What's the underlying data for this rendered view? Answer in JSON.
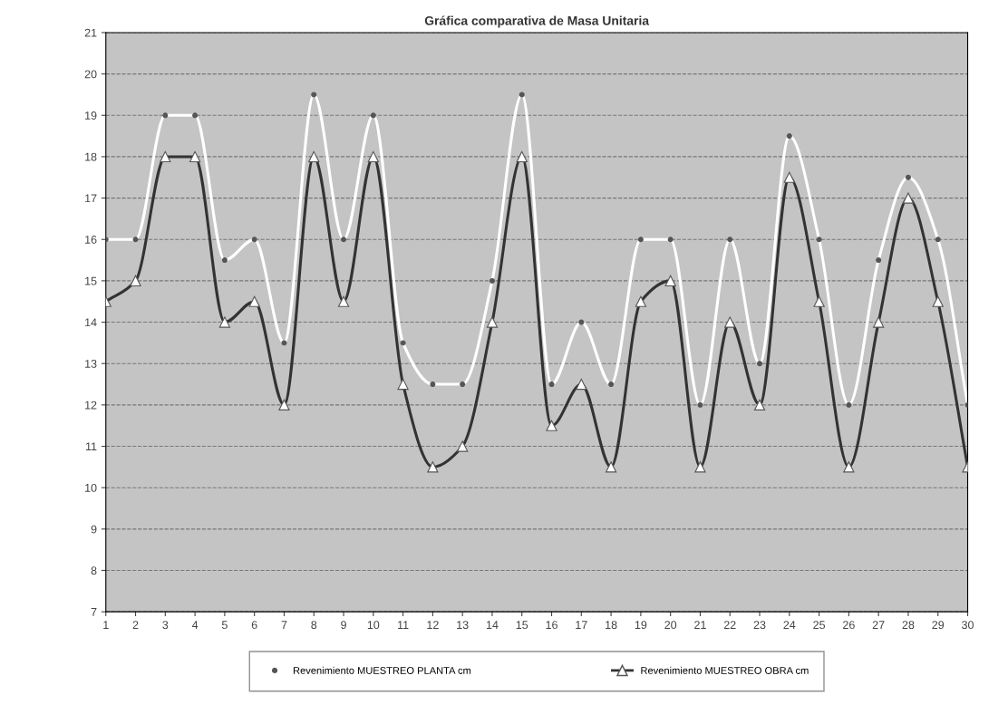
{
  "chart_data": {
    "type": "line",
    "title": "Gráfica comparativa de Masa Unitaria",
    "categories": [
      "1",
      "2",
      "3",
      "4",
      "5",
      "6",
      "7",
      "8",
      "9",
      "10",
      "11",
      "12",
      "13",
      "14",
      "15",
      "16",
      "17",
      "18",
      "19",
      "20",
      "21",
      "22",
      "23",
      "24",
      "25",
      "26",
      "27",
      "28",
      "29",
      "30"
    ],
    "series": [
      {
        "name": "Revenimiento MUESTREO PLANTA cm",
        "color": "#ffffff",
        "marker": "circle",
        "values": [
          16,
          16,
          19,
          19,
          15.5,
          16,
          13.5,
          19.5,
          16,
          19,
          13.5,
          12.5,
          12.5,
          15,
          19.5,
          12.5,
          14,
          12.5,
          16,
          16,
          12,
          16,
          13,
          18.5,
          16,
          12,
          15.5,
          17.5,
          16,
          12
        ]
      },
      {
        "name": "Revenimiento MUESTREO OBRA cm",
        "color": "#333333",
        "marker": "triangle",
        "values": [
          14.5,
          15,
          18,
          18,
          14,
          14.5,
          12,
          18,
          14.5,
          18,
          12.5,
          10.5,
          11,
          14,
          18,
          11.5,
          12.5,
          10.5,
          14.5,
          15,
          10.5,
          14,
          12,
          17.5,
          14.5,
          10.5,
          14,
          17,
          14.5,
          10.5
        ]
      }
    ],
    "ylim": [
      7,
      21
    ],
    "yticks": [
      7,
      8,
      9,
      10,
      11,
      12,
      13,
      14,
      15,
      16,
      17,
      18,
      19,
      20,
      21
    ],
    "grid": "y",
    "legend": "bottom",
    "line_style": "solid"
  }
}
